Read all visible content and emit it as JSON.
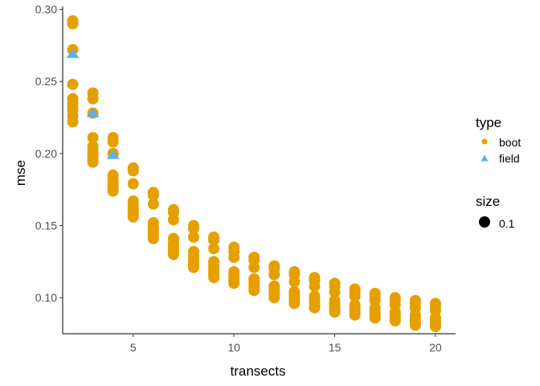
{
  "chart_data": {
    "type": "scatter",
    "xlabel": "transects",
    "ylabel": "mse",
    "xlim": [
      1.5,
      21
    ],
    "ylim": [
      0.075,
      0.302
    ],
    "x_ticks": [
      5,
      10,
      15,
      20
    ],
    "y_ticks": [
      0.1,
      0.15,
      0.2,
      0.25,
      0.3
    ],
    "y_tick_labels": [
      "0.10",
      "0.15",
      "0.20",
      "0.25",
      "0.30"
    ],
    "grid": false,
    "legend_position": "right",
    "legend": {
      "type": {
        "title": "type",
        "entries": [
          {
            "label": "boot",
            "shape": "circle",
            "color": "#E69F00"
          },
          {
            "label": "field",
            "shape": "triangle",
            "color": "#56B4E9"
          }
        ]
      },
      "size": {
        "title": "size",
        "entries": [
          {
            "label": "0.1",
            "shape": "circle",
            "color": "#000000"
          }
        ]
      }
    },
    "series": [
      {
        "name": "boot",
        "shape": "circle",
        "color": "#E69F00",
        "points": [
          [
            2,
            0.292
          ],
          [
            2,
            0.29
          ],
          [
            2,
            0.272
          ],
          [
            2,
            0.248
          ],
          [
            2,
            0.238
          ],
          [
            2,
            0.235
          ],
          [
            2,
            0.232
          ],
          [
            2,
            0.23
          ],
          [
            2,
            0.226
          ],
          [
            2,
            0.222
          ],
          [
            3,
            0.242
          ],
          [
            3,
            0.238
          ],
          [
            3,
            0.228
          ],
          [
            3,
            0.211
          ],
          [
            3,
            0.205
          ],
          [
            3,
            0.202
          ],
          [
            3,
            0.2
          ],
          [
            3,
            0.198
          ],
          [
            3,
            0.196
          ],
          [
            3,
            0.194
          ],
          [
            4,
            0.211
          ],
          [
            4,
            0.208
          ],
          [
            4,
            0.2
          ],
          [
            4,
            0.185
          ],
          [
            4,
            0.182
          ],
          [
            4,
            0.18
          ],
          [
            4,
            0.178
          ],
          [
            4,
            0.176
          ],
          [
            4,
            0.174
          ],
          [
            5,
            0.19
          ],
          [
            5,
            0.188
          ],
          [
            5,
            0.179
          ],
          [
            5,
            0.167
          ],
          [
            5,
            0.164
          ],
          [
            5,
            0.162
          ],
          [
            5,
            0.16
          ],
          [
            5,
            0.158
          ],
          [
            5,
            0.156
          ],
          [
            6,
            0.173
          ],
          [
            6,
            0.171
          ],
          [
            6,
            0.165
          ],
          [
            6,
            0.152
          ],
          [
            6,
            0.149
          ],
          [
            6,
            0.147
          ],
          [
            6,
            0.145
          ],
          [
            6,
            0.143
          ],
          [
            6,
            0.141
          ],
          [
            7,
            0.161
          ],
          [
            7,
            0.159
          ],
          [
            7,
            0.154
          ],
          [
            7,
            0.141
          ],
          [
            7,
            0.138
          ],
          [
            7,
            0.136
          ],
          [
            7,
            0.134
          ],
          [
            7,
            0.132
          ],
          [
            7,
            0.13
          ],
          [
            8,
            0.15
          ],
          [
            8,
            0.148
          ],
          [
            8,
            0.142
          ],
          [
            8,
            0.132
          ],
          [
            8,
            0.129
          ],
          [
            8,
            0.127
          ],
          [
            8,
            0.125
          ],
          [
            8,
            0.123
          ],
          [
            8,
            0.121
          ],
          [
            9,
            0.142
          ],
          [
            9,
            0.14
          ],
          [
            9,
            0.134
          ],
          [
            9,
            0.125
          ],
          [
            9,
            0.122
          ],
          [
            9,
            0.12
          ],
          [
            9,
            0.118
          ],
          [
            9,
            0.116
          ],
          [
            9,
            0.114
          ],
          [
            10,
            0.135
          ],
          [
            10,
            0.132
          ],
          [
            10,
            0.128
          ],
          [
            10,
            0.118
          ],
          [
            10,
            0.116
          ],
          [
            10,
            0.114
          ],
          [
            10,
            0.112
          ],
          [
            10,
            0.11
          ],
          [
            11,
            0.128
          ],
          [
            11,
            0.126
          ],
          [
            11,
            0.121
          ],
          [
            11,
            0.113
          ],
          [
            11,
            0.111
          ],
          [
            11,
            0.109
          ],
          [
            11,
            0.107
          ],
          [
            11,
            0.105
          ],
          [
            12,
            0.122
          ],
          [
            12,
            0.12
          ],
          [
            12,
            0.116
          ],
          [
            12,
            0.108
          ],
          [
            12,
            0.106
          ],
          [
            12,
            0.104
          ],
          [
            12,
            0.102
          ],
          [
            12,
            0.1
          ],
          [
            13,
            0.118
          ],
          [
            13,
            0.116
          ],
          [
            13,
            0.111
          ],
          [
            13,
            0.104
          ],
          [
            13,
            0.102
          ],
          [
            13,
            0.1
          ],
          [
            13,
            0.098
          ],
          [
            13,
            0.096
          ],
          [
            14,
            0.114
          ],
          [
            14,
            0.112
          ],
          [
            14,
            0.108
          ],
          [
            14,
            0.101
          ],
          [
            14,
            0.099
          ],
          [
            14,
            0.097
          ],
          [
            14,
            0.095
          ],
          [
            14,
            0.093
          ],
          [
            15,
            0.11
          ],
          [
            15,
            0.108
          ],
          [
            15,
            0.104
          ],
          [
            15,
            0.098
          ],
          [
            15,
            0.096
          ],
          [
            15,
            0.094
          ],
          [
            15,
            0.092
          ],
          [
            15,
            0.09
          ],
          [
            16,
            0.106
          ],
          [
            16,
            0.104
          ],
          [
            16,
            0.101
          ],
          [
            16,
            0.095
          ],
          [
            16,
            0.093
          ],
          [
            16,
            0.091
          ],
          [
            16,
            0.089
          ],
          [
            16,
            0.088
          ],
          [
            17,
            0.103
          ],
          [
            17,
            0.101
          ],
          [
            17,
            0.098
          ],
          [
            17,
            0.093
          ],
          [
            17,
            0.091
          ],
          [
            17,
            0.089
          ],
          [
            17,
            0.087
          ],
          [
            17,
            0.086
          ],
          [
            18,
            0.1
          ],
          [
            18,
            0.098
          ],
          [
            18,
            0.095
          ],
          [
            18,
            0.09
          ],
          [
            18,
            0.088
          ],
          [
            18,
            0.087
          ],
          [
            18,
            0.085
          ],
          [
            18,
            0.084
          ],
          [
            19,
            0.098
          ],
          [
            19,
            0.096
          ],
          [
            19,
            0.093
          ],
          [
            19,
            0.088
          ],
          [
            19,
            0.086
          ],
          [
            19,
            0.084
          ],
          [
            19,
            0.083
          ],
          [
            19,
            0.081
          ],
          [
            20,
            0.096
          ],
          [
            20,
            0.094
          ],
          [
            20,
            0.091
          ],
          [
            20,
            0.086
          ],
          [
            20,
            0.084
          ],
          [
            20,
            0.083
          ],
          [
            20,
            0.081
          ],
          [
            20,
            0.08
          ]
        ]
      },
      {
        "name": "field",
        "shape": "triangle",
        "color": "#56B4E9",
        "points": [
          [
            2,
            0.269
          ],
          [
            3,
            0.228
          ],
          [
            4,
            0.199
          ]
        ]
      }
    ]
  }
}
